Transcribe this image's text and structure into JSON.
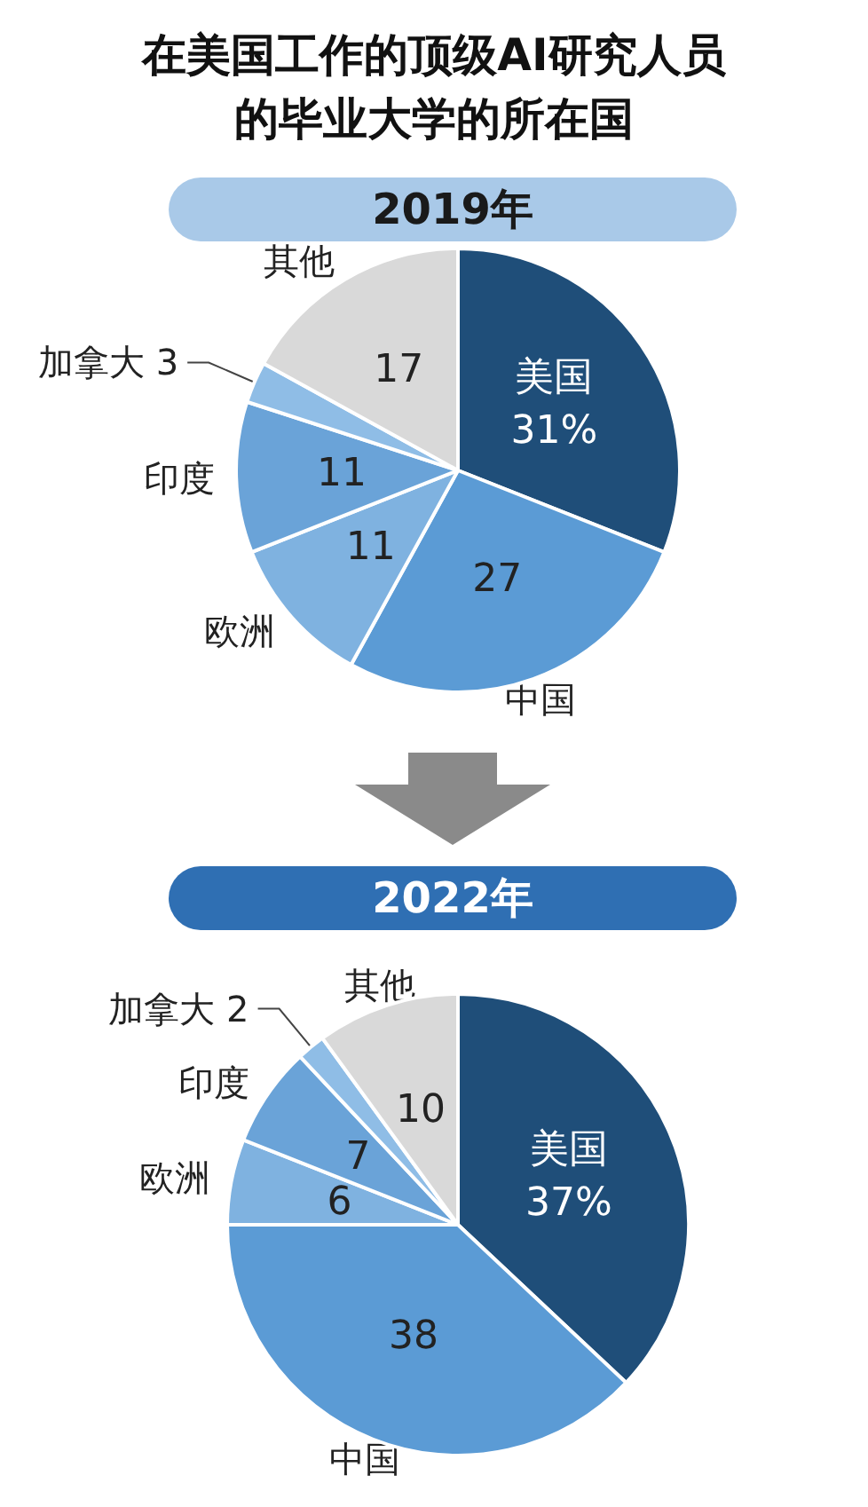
{
  "chart_data": [
    {
      "type": "pie",
      "title": "在美国工作的顶级AI研究人员的毕业大学的所在国",
      "subtitle": "2019年",
      "categories": [
        "美国",
        "中国",
        "欧洲",
        "印度",
        "加拿大",
        "其他"
      ],
      "values": [
        31,
        27,
        11,
        11,
        3,
        17
      ],
      "value_labels": [
        "31%",
        "27",
        "11",
        "11",
        "3",
        "17"
      ],
      "colors": [
        "#1f4e79",
        "#5b9bd5",
        "#7fb2e0",
        "#6aa3d8",
        "#8fbde6",
        "#d9d9d9"
      ],
      "legend": false
    },
    {
      "type": "pie",
      "subtitle": "2022年",
      "categories": [
        "美国",
        "中国",
        "欧洲",
        "印度",
        "加拿大",
        "其他"
      ],
      "values": [
        37,
        38,
        6,
        7,
        2,
        10
      ],
      "value_labels": [
        "37%",
        "38",
        "6",
        "7",
        "2",
        "10"
      ],
      "colors": [
        "#1f4e79",
        "#5b9bd5",
        "#7fb2e0",
        "#6aa3d8",
        "#8fbde6",
        "#d9d9d9"
      ],
      "legend": false
    }
  ]
}
